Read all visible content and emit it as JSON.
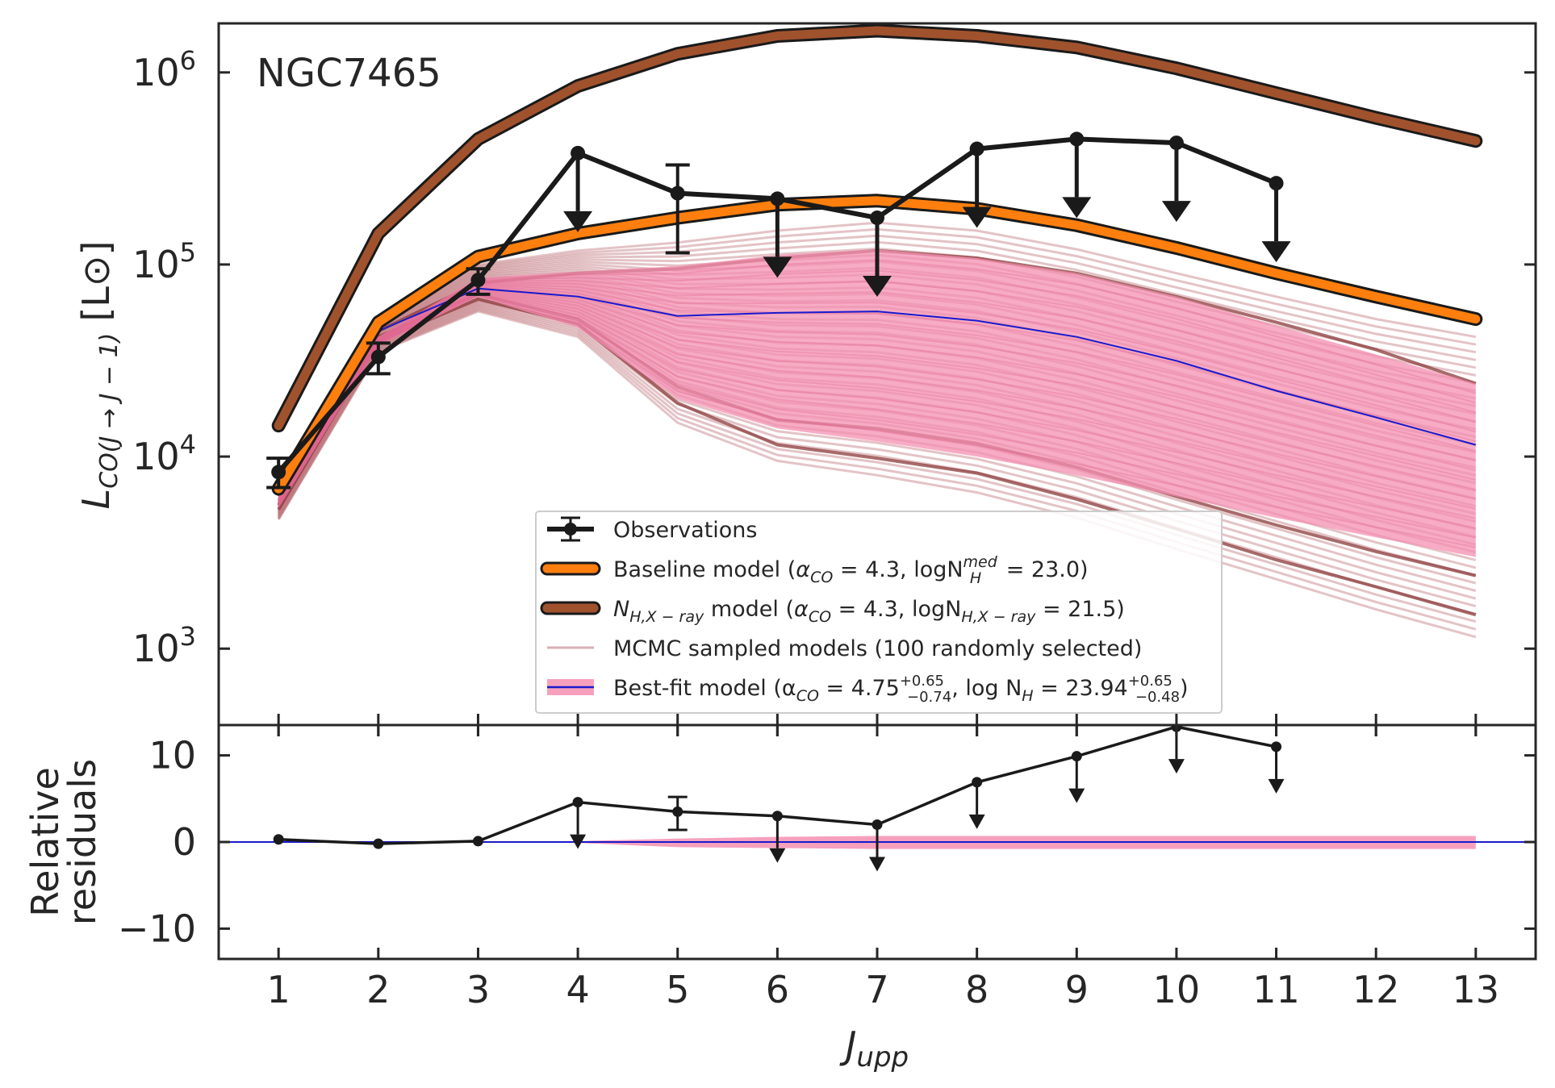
{
  "chart_data": [
    {
      "type": "line",
      "panel": "top",
      "annotation": "NGC7465",
      "xlabel_main": "J",
      "xlabel_sub": "upp",
      "ylabel_main": "L",
      "ylabel_sub": "CO(J → J − 1)",
      "ylabel_unit": "[L⊙]",
      "x": [
        1,
        2,
        3,
        4,
        5,
        6,
        7,
        8,
        9,
        10,
        11,
        12,
        13
      ],
      "x_tick_labels": [
        "1",
        "2",
        "3",
        "4",
        "5",
        "6",
        "7",
        "8",
        "9",
        "10",
        "11",
        "12",
        "13"
      ],
      "xlim": [
        0.4,
        13.6
      ],
      "yscale": "log",
      "ylim": [
        400,
        1800000
      ],
      "y_ticks": [
        1000,
        10000,
        100000,
        1000000
      ],
      "y_tick_labels": [
        {
          "base": "10",
          "exp": "3"
        },
        {
          "base": "10",
          "exp": "4"
        },
        {
          "base": "10",
          "exp": "5"
        },
        {
          "base": "10",
          "exp": "6"
        }
      ],
      "series": [
        {
          "name": "Observations",
          "color": "#1a1a1a",
          "points": [
            {
              "x": 1,
              "y": 8300,
              "err_lo": 6900,
              "err_hi": 9800,
              "upper_limit": false
            },
            {
              "x": 2,
              "y": 33000,
              "err_lo": 27000,
              "err_hi": 39000,
              "upper_limit": false
            },
            {
              "x": 3,
              "y": 83000,
              "err_lo": 70000,
              "err_hi": 95000,
              "upper_limit": false
            },
            {
              "x": 4,
              "y": 380000,
              "upper_limit": true
            },
            {
              "x": 5,
              "y": 235000,
              "err_lo": 115000,
              "err_hi": 330000,
              "upper_limit": false
            },
            {
              "x": 6,
              "y": 220000,
              "upper_limit": true
            },
            {
              "x": 7,
              "y": 175000,
              "upper_limit": true
            },
            {
              "x": 8,
              "y": 400000,
              "upper_limit": true
            },
            {
              "x": 9,
              "y": 450000,
              "upper_limit": true
            },
            {
              "x": 10,
              "y": 430000,
              "upper_limit": true
            },
            {
              "x": 11,
              "y": 265000,
              "upper_limit": true
            }
          ]
        },
        {
          "name": "Baseline model (αCO = 4.3, logN_H^med = 23.0)",
          "color": "#ff7f0e",
          "values": [
            6800,
            50000,
            110000,
            145000,
            175000,
            205000,
            215000,
            195000,
            160000,
            122000,
            90000,
            68000,
            52000
          ]
        },
        {
          "name": "N_H,X−ray model (αCO = 4.3, logN_H,X−ray = 21.5)",
          "color": "#a0522d",
          "values": [
            14500,
            145000,
            450000,
            850000,
            1250000,
            1550000,
            1650000,
            1550000,
            1350000,
            1050000,
            780000,
            580000,
            440000
          ]
        },
        {
          "name": "MCMC sampled models (100 randomly selected)",
          "color": "#c07a80",
          "band_upper": [
            6000,
            48000,
            100000,
            118000,
            130000,
            150000,
            165000,
            150000,
            120000,
            90000,
            68000,
            52000,
            42000
          ],
          "band_lower": [
            4700,
            35000,
            57000,
            42000,
            15000,
            9500,
            8000,
            6500,
            4800,
            3300,
            2300,
            1600,
            1150
          ],
          "highlighted": [
            [
              5300,
              40000,
              66000,
              49000,
              19000,
              11500,
              9800,
              8200,
              6000,
              4200,
              2900,
              2100,
              1500
            ],
            [
              5600,
              42000,
              70000,
              52000,
              23000,
              15500,
              14000,
              11700,
              8800,
              6200,
              4400,
              3200,
              2400
            ],
            [
              6200,
              45000,
              80000,
              90000,
              95000,
              108000,
              118000,
              108000,
              90000,
              68000,
              50000,
              36000,
              24000
            ]
          ]
        },
        {
          "name": "Best-fit model",
          "legend_parts": [
            "Best-fit model (α",
            "CO",
            " = 4.75",
            "+0.65",
            "−0.74",
            ", log N",
            "H",
            " = 23.94",
            "+0.65",
            "−0.48",
            ")"
          ],
          "color": "#1a1acc",
          "band_color": "#f48fb1",
          "values": [
            6800,
            45000,
            75000,
            68000,
            54000,
            56000,
            57000,
            51000,
            42000,
            31500,
            22000,
            16000,
            11500
          ],
          "band_upper": [
            6200,
            42000,
            85000,
            92000,
            98000,
            112000,
            120000,
            108000,
            90000,
            68000,
            48000,
            34000,
            24000
          ],
          "band_lower": [
            5400,
            38000,
            68000,
            47000,
            20000,
            14000,
            12000,
            10000,
            8000,
            6200,
            4800,
            3800,
            3000
          ]
        }
      ],
      "legend": {
        "placement": "lower-center",
        "entries": [
          "Observations",
          "Baseline model (αCO = 4.3, logN_H^med = 23.0)",
          "N_H,X−ray model (αCO = 4.3, logN_H,X−ray = 21.5)",
          "MCMC sampled models (100 randomly selected)",
          "Best-fit model"
        ]
      }
    },
    {
      "type": "line",
      "panel": "bottom",
      "ylabel_line1": "Relative",
      "ylabel_line2": "residuals",
      "x": [
        1,
        2,
        3,
        4,
        5,
        6,
        7,
        8,
        9,
        10,
        11
      ],
      "xlim": [
        0.4,
        13.6
      ],
      "ylim": [
        -13.5,
        13.5
      ],
      "y_ticks": [
        10,
        0,
        -10
      ],
      "y_tick_labels": [
        "10",
        "0",
        "−10"
      ],
      "points": [
        {
          "x": 1,
          "y": 0.3,
          "upper_limit": false
        },
        {
          "x": 2,
          "y": -0.2,
          "upper_limit": false
        },
        {
          "x": 3,
          "y": 0.1,
          "upper_limit": false
        },
        {
          "x": 4,
          "y": 4.6,
          "upper_limit": true
        },
        {
          "x": 5,
          "y": 3.5,
          "err_lo": 1.4,
          "err_hi": 5.2,
          "upper_limit": false
        },
        {
          "x": 6,
          "y": 3.0,
          "upper_limit": true
        },
        {
          "x": 7,
          "y": 2.0,
          "upper_limit": true
        },
        {
          "x": 8,
          "y": 6.9,
          "upper_limit": true
        },
        {
          "x": 9,
          "y": 9.9,
          "upper_limit": true
        },
        {
          "x": 10,
          "y": 13.3,
          "upper_limit": true
        },
        {
          "x": 11,
          "y": 11.0,
          "upper_limit": true
        }
      ],
      "band": {
        "x": [
          1,
          4,
          5,
          6,
          7,
          13
        ],
        "upper": [
          0.1,
          0.1,
          0.4,
          0.6,
          0.7,
          0.7
        ],
        "lower": [
          -0.1,
          -0.1,
          -0.6,
          -0.7,
          -0.8,
          -0.8
        ]
      },
      "zero_line_color": "#1a1acc",
      "band_color": "#f48fb1"
    }
  ]
}
